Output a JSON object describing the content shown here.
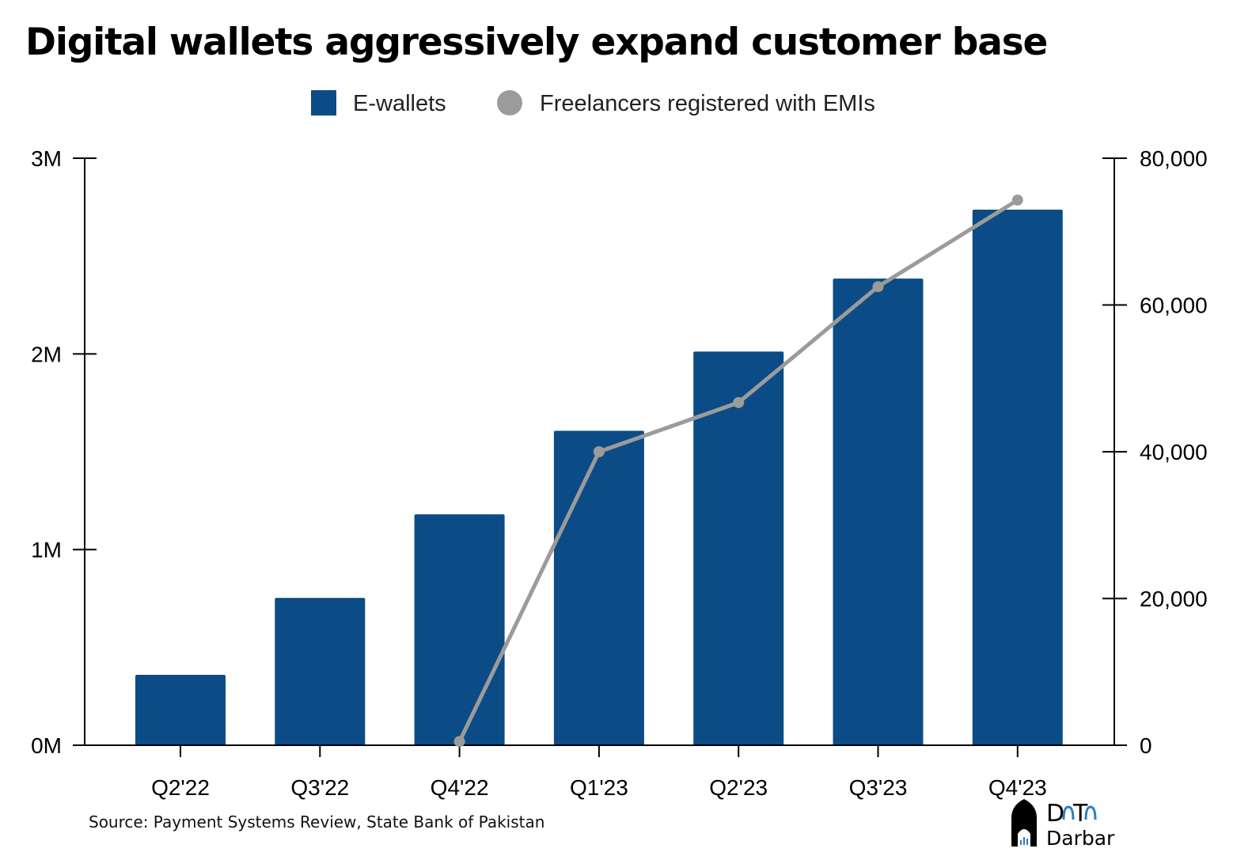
{
  "chart_data": {
    "type": "bar+line",
    "title": "Digital wallets aggressively expand customer base",
    "categories": [
      "Q2'22",
      "Q3'22",
      "Q4'22",
      "Q1'23",
      "Q2'23",
      "Q3'23",
      "Q4'23"
    ],
    "series": [
      {
        "name": "E-wallets",
        "type": "bar",
        "axis": "left",
        "color": "#0b4c86",
        "values": [
          360000,
          753000,
          1180000,
          1607000,
          2012000,
          2385000,
          2737000
        ]
      },
      {
        "name": "Freelancers registered with EMIs",
        "type": "line",
        "axis": "right",
        "color": "#9b9b9b",
        "values": [
          null,
          null,
          500,
          40000,
          46700,
          62500,
          74300
        ]
      }
    ],
    "left_axis": {
      "ylim": [
        0,
        3000000
      ],
      "ticks": [
        0,
        1000000,
        2000000,
        3000000
      ],
      "tick_labels": [
        "0M",
        "1M",
        "2M",
        "3M"
      ]
    },
    "right_axis": {
      "ylim": [
        0,
        80000
      ],
      "ticks": [
        0,
        20000,
        40000,
        60000,
        80000
      ],
      "tick_labels": [
        "0",
        "20,000",
        "40,000",
        "60,000",
        "80,000"
      ]
    },
    "legend_position": "top-center",
    "grid": false
  },
  "source": "Source: Payment Systems Review, State Bank of Pakistan",
  "logo": {
    "text_top": "DaTa",
    "text_bottom": "Darbar"
  }
}
